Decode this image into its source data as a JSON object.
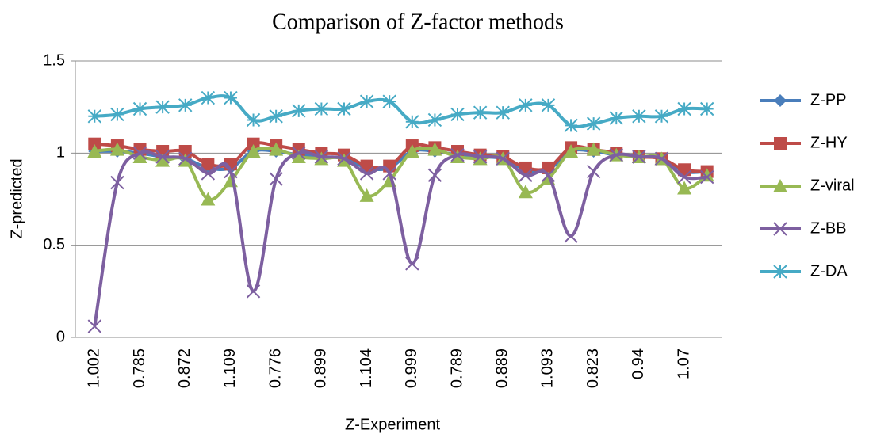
{
  "chart_data": {
    "type": "line",
    "title": "Comparison of Z-factor methods",
    "x_label": "Z-Experiment",
    "y_label": "Z-predicted",
    "categories": [
      "1.002",
      null,
      "0.785",
      null,
      "0.872",
      null,
      "1.109",
      null,
      "0.776",
      null,
      "0.899",
      null,
      "1.104",
      null,
      "0.999",
      null,
      "0.789",
      null,
      "0.889",
      null,
      "1.093",
      null,
      "0.823",
      null,
      "0.94",
      null,
      "1.07",
      null
    ],
    "ylim": [
      0,
      1.5
    ],
    "yticks": [
      0,
      0.5,
      1,
      1.5
    ],
    "grid": true,
    "legend": "right",
    "smooth": true,
    "series": [
      {
        "name": "Z-PP",
        "color": "#4a7ebb",
        "marker": "diamond",
        "values": [
          1.01,
          1.01,
          1.0,
          0.98,
          0.97,
          0.92,
          0.92,
          1.01,
          1.01,
          0.99,
          0.98,
          0.97,
          0.92,
          0.92,
          1.01,
          1.01,
          0.99,
          0.98,
          0.97,
          0.91,
          0.91,
          1.01,
          1.01,
          0.99,
          0.98,
          0.97,
          0.9,
          0.9
        ]
      },
      {
        "name": "Z-HY",
        "color": "#be4b48",
        "marker": "square",
        "values": [
          1.05,
          1.04,
          1.02,
          1.01,
          1.01,
          0.94,
          0.94,
          1.05,
          1.04,
          1.02,
          1.0,
          0.99,
          0.93,
          0.93,
          1.04,
          1.03,
          1.01,
          0.99,
          0.98,
          0.92,
          0.92,
          1.03,
          1.02,
          1.0,
          0.98,
          0.97,
          0.91,
          0.9
        ]
      },
      {
        "name": "Z-viral",
        "color": "#98b954",
        "marker": "triangle",
        "values": [
          1.01,
          1.02,
          0.98,
          0.96,
          0.96,
          0.75,
          0.85,
          1.01,
          1.02,
          0.98,
          0.97,
          0.96,
          0.77,
          0.85,
          1.01,
          1.02,
          0.98,
          0.97,
          0.97,
          0.79,
          0.86,
          1.01,
          1.02,
          0.99,
          0.98,
          0.97,
          0.81,
          0.88
        ]
      },
      {
        "name": "Z-BB",
        "color": "#7d5fa0",
        "marker": "x",
        "values": [
          0.06,
          0.84,
          1.0,
          0.98,
          0.97,
          0.89,
          0.9,
          0.25,
          0.86,
          1.0,
          0.98,
          0.97,
          0.89,
          0.89,
          0.4,
          0.88,
          0.99,
          0.98,
          0.97,
          0.88,
          0.88,
          0.55,
          0.9,
          0.99,
          0.98,
          0.97,
          0.87,
          0.87
        ]
      },
      {
        "name": "Z-DA",
        "color": "#46aac5",
        "marker": "star",
        "values": [
          1.2,
          1.21,
          1.24,
          1.25,
          1.26,
          1.3,
          1.3,
          1.18,
          1.2,
          1.23,
          1.24,
          1.24,
          1.28,
          1.28,
          1.17,
          1.18,
          1.21,
          1.22,
          1.22,
          1.26,
          1.26,
          1.15,
          1.16,
          1.19,
          1.2,
          1.2,
          1.24,
          1.24
        ]
      }
    ]
  }
}
